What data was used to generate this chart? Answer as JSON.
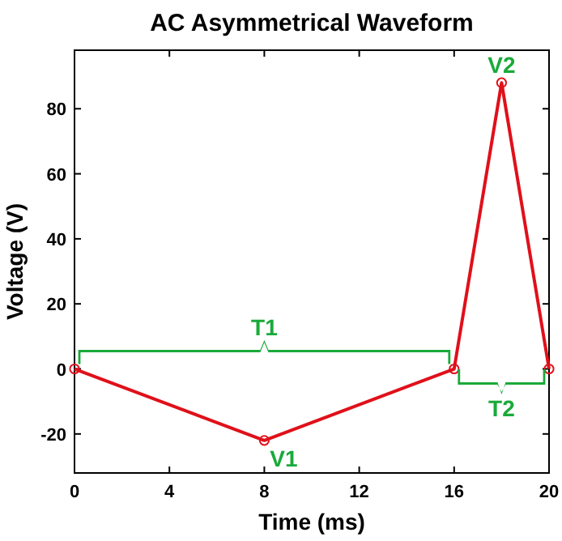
{
  "chart_data": {
    "type": "line",
    "title": "AC Asymmetrical Waveform",
    "xlabel": "Time (ms)",
    "ylabel": "Voltage (V)",
    "x": [
      0,
      8,
      16,
      18,
      20
    ],
    "series": [
      {
        "color": "#e0101a",
        "values": [
          0,
          -22,
          0,
          88,
          0
        ]
      }
    ],
    "xlim": [
      0,
      20
    ],
    "xticks": [
      0,
      4,
      8,
      12,
      16,
      20
    ],
    "ylim": [
      -32,
      98
    ],
    "yticks": [
      -20,
      0,
      20,
      40,
      60,
      80
    ],
    "marker": "circle",
    "line_style": "solid",
    "annotations": [
      "T1",
      "T2",
      {
        "text": "V1",
        "x": 8,
        "y": -22
      },
      {
        "text": "V2",
        "x": 18,
        "y": 88
      }
    ]
  }
}
